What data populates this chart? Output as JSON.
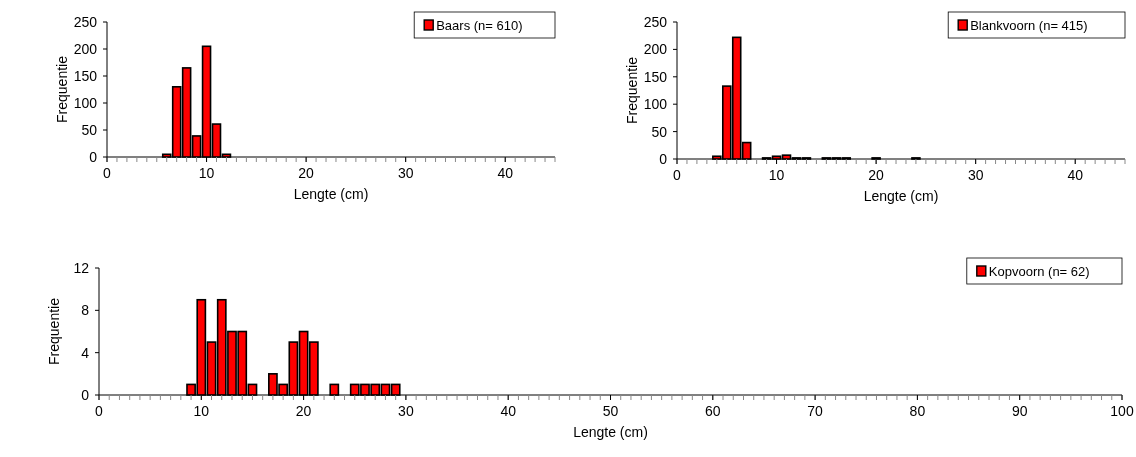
{
  "chart_data": [
    {
      "type": "bar",
      "x": [
        6,
        7,
        8,
        9,
        10,
        11,
        12
      ],
      "series": [
        {
          "name": "Baars (n= 610)",
          "color": "#ff0000",
          "values": [
            5,
            130,
            165,
            39,
            205,
            61,
            5
          ]
        }
      ],
      "xlim": [
        0,
        45
      ],
      "xticks": [
        0,
        10,
        20,
        30,
        40
      ],
      "ylim": [
        0,
        250
      ],
      "yticks": [
        0,
        50,
        100,
        150,
        200,
        250
      ],
      "xlabel": "Lengte (cm)",
      "ylabel": "Frequentie",
      "legend": "top right"
    },
    {
      "type": "bar",
      "x": [
        4,
        5,
        6,
        7,
        9,
        10,
        11,
        12,
        13,
        15,
        16,
        17,
        20,
        24
      ],
      "series": [
        {
          "name": "Blankvoorn (n= 415)",
          "color": "#ff0000",
          "values": [
            5,
            133,
            222,
            30,
            2,
            5,
            7,
            2,
            2,
            2,
            2,
            2,
            2,
            2
          ]
        }
      ],
      "xlim": [
        0,
        45
      ],
      "xticks": [
        0,
        10,
        20,
        30,
        40
      ],
      "ylim": [
        0,
        250
      ],
      "yticks": [
        0,
        50,
        100,
        150,
        200,
        250
      ],
      "xlabel": "Lengte (cm)",
      "ylabel": "Frequentie",
      "legend": "top right"
    },
    {
      "type": "bar",
      "x": [
        9,
        10,
        11,
        12,
        13,
        14,
        15,
        17,
        18,
        19,
        20,
        21,
        23,
        25,
        26,
        27,
        28,
        29
      ],
      "series": [
        {
          "name": "Kopvoorn (n= 62)",
          "color": "#ff0000",
          "values": [
            1,
            9,
            5,
            9,
            6,
            6,
            1,
            2,
            1,
            5,
            6,
            5,
            1,
            1,
            1,
            1,
            1,
            1
          ]
        }
      ],
      "xlim": [
        0,
        100
      ],
      "xticks": [
        0,
        10,
        20,
        30,
        40,
        50,
        60,
        70,
        80,
        90,
        100
      ],
      "ylim": [
        0,
        12
      ],
      "yticks": [
        0,
        4,
        8,
        12
      ],
      "xlabel": "Lengte (cm)",
      "ylabel": "Frequentie",
      "legend": "top right"
    }
  ]
}
